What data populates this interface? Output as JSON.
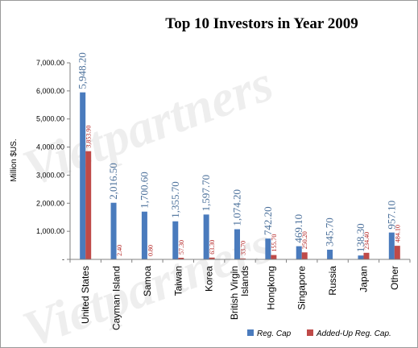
{
  "chart_data": {
    "type": "bar",
    "title": "Top 10 Investors in Year 2009",
    "xlabel": "",
    "ylabel": "Million $US.",
    "ylim": [
      0,
      7000
    ],
    "yticks": [
      "-",
      "1,000.00",
      "2,000.00",
      "3,000.00",
      "4,000.00",
      "5,000.00",
      "6,000.00",
      "7,000.00"
    ],
    "ytick_values": [
      0,
      1000,
      2000,
      3000,
      4000,
      5000,
      6000,
      7000
    ],
    "categories": [
      "United States",
      "Cayman Island",
      "Samoa",
      "Taiwan",
      "Korea",
      "British Virgin Islands",
      "Hongkong",
      "Singapore",
      "Russia",
      "Japan",
      "Other"
    ],
    "series": [
      {
        "name": "Reg. Cap",
        "color": "#4a7bbd",
        "values": [
          5948.2,
          2016.5,
          1700.6,
          1355.7,
          1597.7,
          1074.2,
          742.2,
          469.1,
          345.7,
          138.3,
          957.1
        ],
        "labels": [
          "5,948.20",
          "2,016.50",
          "1,700.60",
          "1,355.70",
          "1,597.70",
          "1,074.20",
          "742.20",
          "469.10",
          "345.70",
          "138.30",
          "957.10"
        ]
      },
      {
        "name": "Added-Up Reg. Cap.",
        "color": "#bf4a48",
        "values": [
          3853.9,
          2.4,
          0.8,
          57.3,
          63.3,
          33.7,
          155.7,
          250.2,
          0,
          234.4,
          484.1
        ],
        "labels": [
          "3,853.90",
          "2.40",
          "0.80",
          "57.30",
          "63.30",
          "33.70",
          "155.70",
          "250.20",
          "",
          "234.40",
          "484.10"
        ]
      }
    ],
    "grid": false,
    "legend_position": "bottom-right"
  }
}
